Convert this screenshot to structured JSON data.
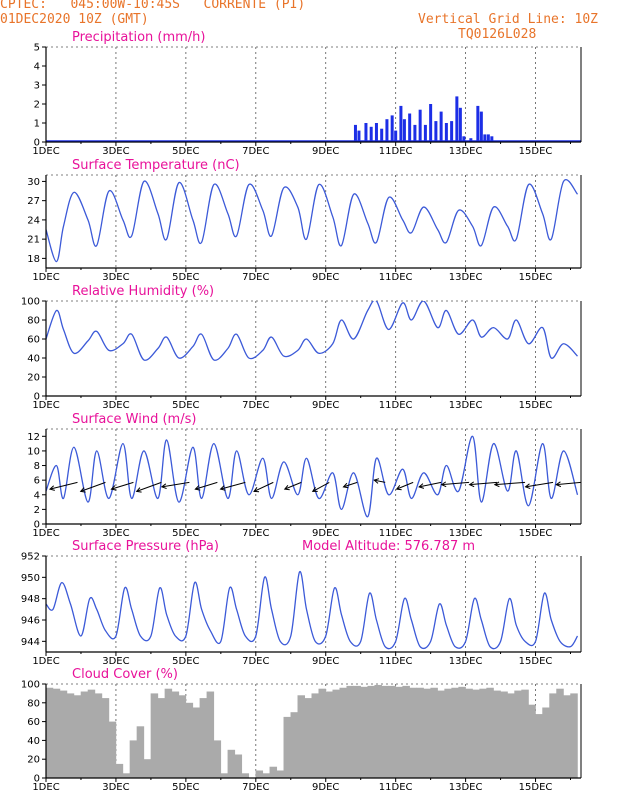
{
  "header": {
    "station_line": "CPTEC:   045:00W-10:45S   CORRENTE (PI)",
    "date_line": "01DEC2020 10Z (GMT)",
    "grid_note": "Vertical Grid Line: 10Z",
    "model_code": "TQ0126L028"
  },
  "model_altitude_label": "Model Altitude: 576.787 m",
  "colors": {
    "line": "#3c5ad8",
    "precip": "#1c2ee6",
    "cloud": "#aaaaaa",
    "title": "#e8129a",
    "header": "#e8742a"
  },
  "chart_data": [
    {
      "type": "bar",
      "title": "Precipitation (mm/h)",
      "x_tick_labels": [
        "1DEC",
        "3DEC",
        "5DEC",
        "7DEC",
        "9DEC",
        "11DEC",
        "13DEC",
        "15DEC"
      ],
      "y_ticks": [
        0,
        1,
        2,
        3,
        4,
        5
      ],
      "ylim": [
        0,
        5
      ],
      "x_range_days": [
        1,
        16.3
      ],
      "days": [
        9.85,
        9.95,
        10.15,
        10.3,
        10.45,
        10.6,
        10.75,
        10.9,
        11.0,
        11.15,
        11.25,
        11.4,
        11.55,
        11.7,
        11.85,
        12.0,
        12.15,
        12.3,
        12.45,
        12.6,
        12.75,
        12.85,
        12.95,
        13.15,
        13.35,
        13.45,
        13.55,
        13.65,
        13.75
      ],
      "values": [
        0.9,
        0.6,
        1.0,
        0.8,
        1.0,
        0.7,
        1.2,
        1.4,
        0.6,
        1.9,
        1.2,
        1.5,
        0.9,
        1.7,
        0.9,
        2.0,
        1.1,
        1.6,
        1.0,
        1.1,
        2.4,
        1.8,
        0.3,
        0.2,
        1.9,
        1.6,
        0.4,
        0.4,
        0.3
      ]
    },
    {
      "type": "line",
      "title": "Surface Temperature (nC)",
      "x_tick_labels": [
        "1DEC",
        "3DEC",
        "5DEC",
        "7DEC",
        "9DEC",
        "11DEC",
        "13DEC",
        "15DEC"
      ],
      "y_ticks": [
        18,
        21,
        24,
        27,
        30
      ],
      "ylim": [
        16.5,
        31
      ],
      "x": [
        1.0,
        1.3,
        1.5,
        1.8,
        2.2,
        2.45,
        2.8,
        3.2,
        3.45,
        3.8,
        4.2,
        4.45,
        4.8,
        5.2,
        5.45,
        5.8,
        6.2,
        6.45,
        6.8,
        7.2,
        7.45,
        7.8,
        8.2,
        8.45,
        8.8,
        9.2,
        9.45,
        9.8,
        10.2,
        10.45,
        10.8,
        11.2,
        11.45,
        11.8,
        12.2,
        12.45,
        12.8,
        13.2,
        13.45,
        13.8,
        14.2,
        14.45,
        14.8,
        15.2,
        15.45,
        15.8,
        16.2
      ],
      "y": [
        22.5,
        17.5,
        23.0,
        28.3,
        24.0,
        20.0,
        28.5,
        24.0,
        21.5,
        30.0,
        25.0,
        21.0,
        29.8,
        24.0,
        20.5,
        29.5,
        25.0,
        21.5,
        29.5,
        25.5,
        21.5,
        29.0,
        26.0,
        21.0,
        29.5,
        24.5,
        20.0,
        28.0,
        23.5,
        20.5,
        27.5,
        24.0,
        22.0,
        26.0,
        22.5,
        20.5,
        25.5,
        23.0,
        20.0,
        26.0,
        23.0,
        21.0,
        29.5,
        25.0,
        21.0,
        30.0,
        28.0
      ]
    },
    {
      "type": "line",
      "title": "Relative Humidity (%)",
      "x_tick_labels": [
        "1DEC",
        "3DEC",
        "5DEC",
        "7DEC",
        "9DEC",
        "11DEC",
        "13DEC",
        "15DEC"
      ],
      "y_ticks": [
        0,
        20,
        40,
        60,
        80,
        100
      ],
      "ylim": [
        0,
        100
      ],
      "x": [
        1.0,
        1.3,
        1.5,
        1.8,
        2.2,
        2.45,
        2.8,
        3.2,
        3.45,
        3.8,
        4.2,
        4.45,
        4.8,
        5.2,
        5.45,
        5.8,
        6.2,
        6.45,
        6.8,
        7.2,
        7.45,
        7.8,
        8.2,
        8.45,
        8.8,
        9.2,
        9.45,
        9.8,
        10.2,
        10.45,
        10.8,
        11.2,
        11.45,
        11.8,
        12.2,
        12.45,
        12.8,
        13.2,
        13.45,
        13.8,
        14.2,
        14.45,
        14.8,
        15.2,
        15.45,
        15.8,
        16.2
      ],
      "y": [
        60,
        90,
        70,
        45,
        58,
        68,
        48,
        55,
        65,
        38,
        50,
        62,
        40,
        52,
        65,
        38,
        50,
        65,
        40,
        48,
        62,
        42,
        48,
        60,
        45,
        55,
        80,
        60,
        90,
        100,
        70,
        98,
        80,
        100,
        72,
        90,
        65,
        80,
        62,
        72,
        60,
        80,
        55,
        72,
        40,
        55,
        42
      ]
    },
    {
      "type": "line",
      "title": "Surface Wind (m/s)",
      "x_tick_labels": [
        "1DEC",
        "3DEC",
        "5DEC",
        "7DEC",
        "9DEC",
        "11DEC",
        "13DEC",
        "15DEC"
      ],
      "y_ticks": [
        0,
        2,
        4,
        6,
        8,
        10,
        12
      ],
      "ylim": [
        0,
        13
      ],
      "x": [
        1.0,
        1.3,
        1.5,
        1.8,
        2.2,
        2.45,
        2.8,
        3.2,
        3.45,
        3.8,
        4.2,
        4.45,
        4.8,
        5.2,
        5.45,
        5.8,
        6.2,
        6.45,
        6.8,
        7.2,
        7.45,
        7.8,
        8.2,
        8.45,
        8.8,
        9.2,
        9.45,
        9.8,
        10.2,
        10.45,
        10.8,
        11.2,
        11.45,
        11.8,
        12.2,
        12.45,
        12.8,
        13.2,
        13.45,
        13.8,
        14.2,
        14.45,
        14.8,
        15.2,
        15.45,
        15.8,
        16.2
      ],
      "y": [
        4.5,
        8.0,
        3.5,
        10.5,
        3.0,
        10.0,
        3.5,
        11.0,
        3.5,
        10.0,
        3.5,
        11.5,
        3.0,
        10.5,
        3.5,
        11.0,
        3.5,
        10.0,
        4.0,
        9.0,
        3.5,
        8.5,
        4.0,
        9.0,
        3.5,
        7.0,
        2.0,
        7.0,
        1.0,
        9.0,
        4.0,
        7.5,
        3.5,
        7.0,
        4.0,
        8.0,
        4.5,
        12.0,
        3.0,
        11.0,
        4.5,
        10.0,
        2.5,
        11.0,
        3.5,
        10.0,
        4.0
      ],
      "wind_vectors": {
        "days": [
          1.5,
          2.3,
          3.1,
          3.9,
          4.7,
          5.5,
          6.3,
          7.1,
          7.9,
          8.7,
          9.5,
          10.3,
          11.1,
          11.9,
          12.7,
          13.5,
          14.3,
          15.1,
          15.9
        ],
        "u": [
          -5,
          -4.5,
          -4,
          -4.5,
          -5,
          -4,
          -4.5,
          -3.5,
          -3,
          -3,
          -2.5,
          -2,
          -3,
          -4,
          -5,
          -5,
          -5.5,
          -5,
          -4.5
        ],
        "v": [
          -1.5,
          -2,
          -1.5,
          -2,
          -1,
          -1.5,
          -1.5,
          -2,
          -1.5,
          -2,
          -1,
          0.5,
          -1.5,
          -1,
          -0.5,
          -0.5,
          -0.5,
          -1,
          -0.5
        ]
      }
    },
    {
      "type": "line",
      "title": "Surface Pressure (hPa)",
      "x_tick_labels": [
        "1DEC",
        "3DEC",
        "5DEC",
        "7DEC",
        "9DEC",
        "11DEC",
        "13DEC",
        "15DEC"
      ],
      "y_ticks": [
        944,
        946,
        948,
        950,
        952
      ],
      "ylim": [
        943,
        952
      ],
      "x": [
        1.0,
        1.2,
        1.45,
        1.7,
        2.0,
        2.25,
        2.45,
        2.7,
        3.0,
        3.25,
        3.45,
        3.7,
        4.0,
        4.25,
        4.45,
        4.7,
        5.0,
        5.25,
        5.45,
        5.7,
        6.0,
        6.25,
        6.45,
        6.7,
        7.0,
        7.25,
        7.45,
        7.7,
        8.0,
        8.25,
        8.45,
        8.7,
        9.0,
        9.25,
        9.45,
        9.7,
        10.0,
        10.25,
        10.45,
        10.7,
        11.0,
        11.25,
        11.45,
        11.7,
        12.0,
        12.25,
        12.45,
        12.7,
        13.0,
        13.25,
        13.45,
        13.7,
        14.0,
        14.25,
        14.45,
        14.7,
        15.0,
        15.25,
        15.45,
        15.7,
        16.0,
        16.2
      ],
      "y": [
        947.5,
        947.0,
        949.5,
        947.5,
        944.5,
        948.0,
        947.0,
        945.0,
        944.5,
        949.0,
        947.0,
        944.5,
        944.5,
        949.0,
        946.5,
        944.5,
        944.5,
        949.5,
        947.0,
        945.0,
        944.0,
        949.0,
        947.0,
        944.5,
        944.5,
        950.0,
        947.0,
        944.0,
        944.5,
        950.5,
        947.0,
        944.0,
        944.5,
        949.0,
        946.5,
        944.0,
        944.0,
        948.5,
        946.0,
        943.5,
        944.0,
        948.0,
        946.0,
        943.5,
        944.0,
        947.5,
        945.5,
        943.5,
        944.0,
        948.0,
        946.0,
        943.5,
        944.0,
        948.0,
        945.5,
        944.0,
        944.0,
        948.5,
        946.0,
        944.0,
        943.5,
        944.5
      ]
    },
    {
      "type": "bar",
      "title": "Cloud Cover (%)",
      "x_tick_labels": [
        "1DEC",
        "3DEC",
        "5DEC",
        "7DEC",
        "9DEC",
        "11DEC",
        "13DEC",
        "15DEC"
      ],
      "y_ticks": [
        0,
        20,
        40,
        60,
        80,
        100
      ],
      "ylim": [
        0,
        100
      ],
      "days": [
        1.1,
        1.3,
        1.5,
        1.7,
        1.9,
        2.1,
        2.3,
        2.5,
        2.7,
        2.9,
        3.1,
        3.3,
        3.5,
        3.7,
        3.9,
        4.1,
        4.3,
        4.5,
        4.7,
        4.9,
        5.1,
        5.3,
        5.5,
        5.7,
        5.9,
        6.1,
        6.3,
        6.5,
        6.7,
        6.9,
        7.1,
        7.3,
        7.5,
        7.7,
        7.9,
        8.1,
        8.3,
        8.5,
        8.7,
        8.9,
        9.1,
        9.3,
        9.5,
        9.7,
        9.9,
        10.1,
        10.3,
        10.5,
        10.7,
        10.9,
        11.1,
        11.3,
        11.5,
        11.7,
        11.9,
        12.1,
        12.3,
        12.5,
        12.7,
        12.9,
        13.1,
        13.3,
        13.5,
        13.7,
        13.9,
        14.1,
        14.3,
        14.5,
        14.7,
        14.9,
        15.1,
        15.3,
        15.5,
        15.7,
        15.9,
        16.1
      ],
      "values": [
        96,
        95,
        93,
        90,
        88,
        92,
        94,
        90,
        85,
        60,
        15,
        5,
        40,
        55,
        20,
        90,
        85,
        95,
        92,
        88,
        80,
        75,
        85,
        92,
        40,
        5,
        30,
        25,
        5,
        0,
        8,
        5,
        12,
        8,
        65,
        70,
        88,
        85,
        90,
        95,
        92,
        94,
        96,
        98,
        98,
        97,
        98,
        99,
        98,
        98,
        97,
        98,
        96,
        96,
        95,
        96,
        93,
        95,
        96,
        97,
        95,
        94,
        95,
        96,
        93,
        92,
        90,
        93,
        94,
        78,
        68,
        75,
        90,
        95,
        88,
        90
      ]
    }
  ]
}
